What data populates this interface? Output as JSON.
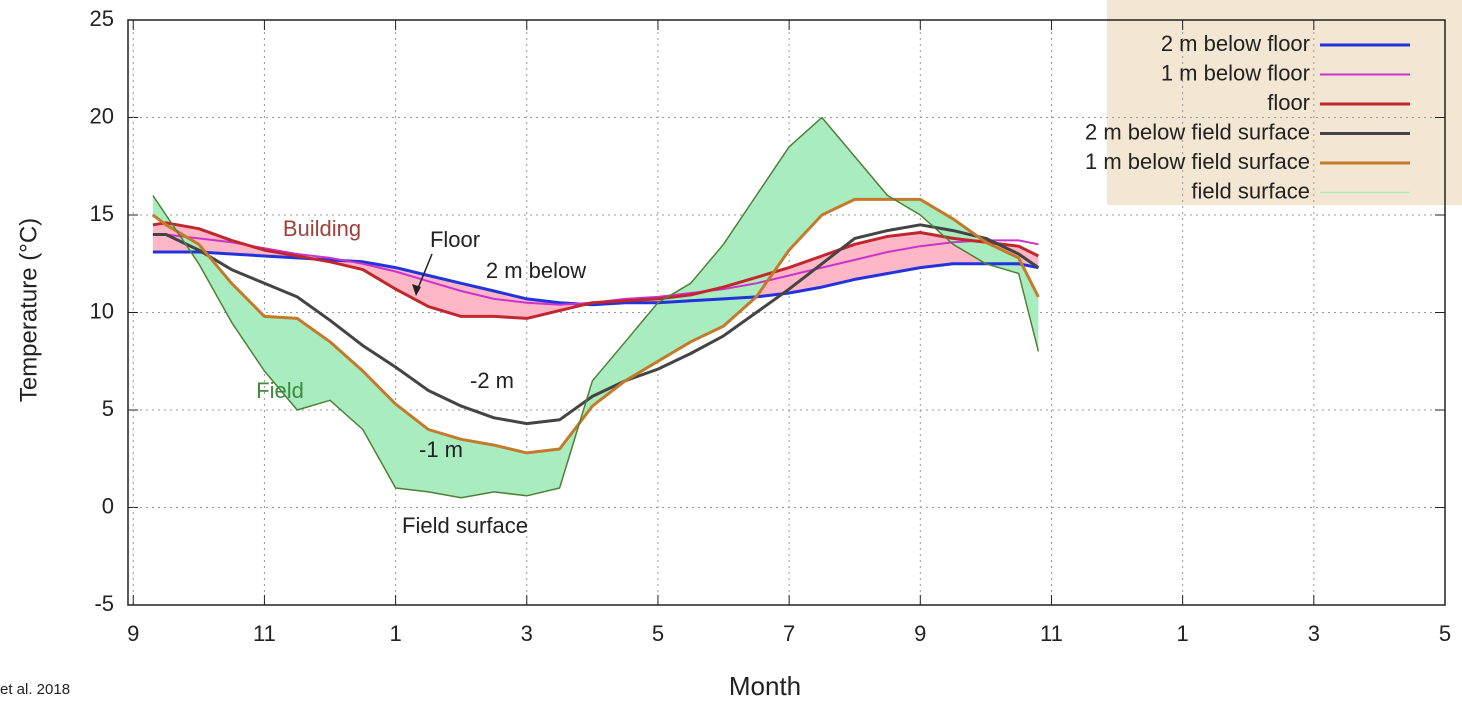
{
  "chart_data": {
    "type": "line",
    "x_label": "Month",
    "y_label": "Temperature (°C)",
    "source": "et al. 2018",
    "xlim": [
      8.92,
      29
    ],
    "ylim": [
      -5,
      25
    ],
    "xticks": [
      9,
      11,
      {
        "value": 13,
        "label": "1"
      },
      {
        "value": 15,
        "label": "3"
      },
      {
        "value": 17,
        "label": "5"
      },
      {
        "value": 19,
        "label": "7"
      },
      {
        "value": 21,
        "label": "9"
      },
      {
        "value": 23,
        "label": "11"
      },
      {
        "value": 25,
        "label": "1"
      },
      {
        "value": 27,
        "label": "3"
      },
      {
        "value": 29,
        "label": "5"
      }
    ],
    "yticks": [
      -5,
      0,
      5,
      10,
      15,
      20,
      25
    ],
    "grid": true,
    "legend": "top-right",
    "annotations": [
      "Building",
      "Floor",
      "2 m below",
      "-2 m",
      "-1 m",
      "Field",
      "Field surface"
    ],
    "x": [
      9.3,
      9.5,
      10,
      10.5,
      11,
      11.5,
      12,
      12.5,
      13,
      13.5,
      14,
      14.5,
      15,
      15.5,
      16,
      16.5,
      17,
      17.5,
      18,
      18.5,
      19,
      19.5,
      20,
      20.5,
      21,
      21.5,
      22,
      22.5,
      22.8
    ],
    "series": [
      {
        "name": "2 m below floor",
        "color": "#2233dd",
        "width": 3,
        "values": [
          13.1,
          13.1,
          13.1,
          13.0,
          12.9,
          12.8,
          12.7,
          12.6,
          12.3,
          11.9,
          11.5,
          11.1,
          10.7,
          10.5,
          10.4,
          10.5,
          10.5,
          10.6,
          10.7,
          10.8,
          11.0,
          11.3,
          11.7,
          12.0,
          12.3,
          12.5,
          12.5,
          12.5,
          12.3
        ]
      },
      {
        "name": "1 m below floor",
        "color": "#cc33cc",
        "width": 2,
        "values": [
          14.0,
          14.0,
          13.8,
          13.6,
          13.3,
          13.0,
          12.8,
          12.5,
          12.1,
          11.6,
          11.1,
          10.7,
          10.5,
          10.4,
          10.5,
          10.7,
          10.8,
          11.0,
          11.2,
          11.5,
          11.9,
          12.3,
          12.7,
          13.1,
          13.4,
          13.6,
          13.7,
          13.7,
          13.5
        ]
      },
      {
        "name": "floor",
        "color": "#c0282e",
        "width": 3,
        "fill_to": "2 m below floor",
        "fill_color": "#ffb6c6",
        "values": [
          14.5,
          14.6,
          14.3,
          13.7,
          13.2,
          12.9,
          12.6,
          12.2,
          11.2,
          10.3,
          9.8,
          9.8,
          9.7,
          10.1,
          10.5,
          10.6,
          10.7,
          10.9,
          11.3,
          11.8,
          12.3,
          12.9,
          13.5,
          13.9,
          14.1,
          13.8,
          13.6,
          13.4,
          12.9
        ]
      },
      {
        "name": "2 m below field surface",
        "color": "#444444",
        "width": 3,
        "values": [
          14.0,
          14.0,
          13.2,
          12.2,
          11.5,
          10.8,
          9.6,
          8.3,
          7.2,
          6.0,
          5.2,
          4.6,
          4.3,
          4.5,
          5.7,
          6.5,
          7.1,
          7.9,
          8.8,
          10.0,
          11.2,
          12.5,
          13.8,
          14.2,
          14.5,
          14.2,
          13.8,
          13.0,
          12.3
        ]
      },
      {
        "name": "1 m below field surface",
        "color": "#c47a2a",
        "width": 3,
        "values": [
          15.0,
          14.5,
          13.5,
          11.5,
          9.8,
          9.7,
          8.5,
          7.0,
          5.3,
          4.0,
          3.5,
          3.2,
          2.8,
          3.0,
          5.2,
          6.5,
          7.5,
          8.5,
          9.3,
          10.8,
          13.2,
          15.0,
          15.8,
          15.8,
          15.8,
          14.8,
          13.6,
          12.8,
          10.8
        ]
      },
      {
        "name": "field surface",
        "color": "#4f8036",
        "width": 1.5,
        "fill_to": "1 m below field surface",
        "fill_color": "#a8ecc0",
        "values": [
          16.0,
          15.0,
          12.5,
          9.5,
          7.0,
          5.0,
          5.5,
          4.0,
          1.0,
          0.8,
          0.5,
          0.8,
          0.6,
          1.0,
          6.5,
          8.5,
          10.5,
          11.5,
          13.5,
          16.0,
          18.5,
          20.0,
          18.0,
          16.0,
          15.0,
          13.5,
          12.5,
          12.0,
          8.0
        ]
      }
    ]
  }
}
